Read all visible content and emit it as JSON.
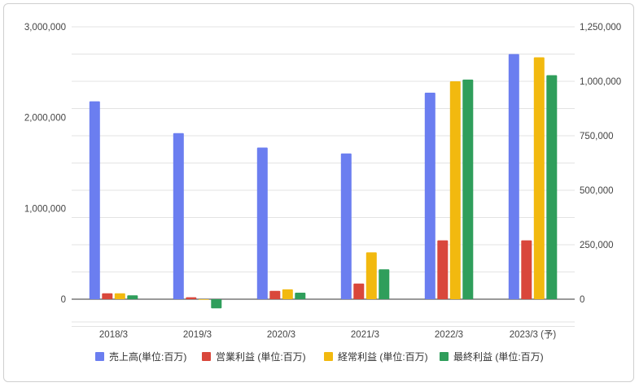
{
  "chart_data": {
    "type": "bar",
    "categories": [
      "2018/3",
      "2019/3",
      "2020/3",
      "2021/3",
      "2022/3",
      "2023/3 (予)"
    ],
    "series": [
      {
        "name": "売上高(単位:百万)",
        "axis": "left",
        "color": "#6b7ef0",
        "values": [
          2180000,
          1830000,
          1670000,
          1605000,
          2275000,
          2700000
        ]
      },
      {
        "name": "営業利益 (単位:百万)",
        "axis": "right",
        "color": "#d9473b",
        "values": [
          27000,
          9000,
          38000,
          72000,
          270000,
          270000
        ]
      },
      {
        "name": "経常利益 (単位:百万)",
        "axis": "right",
        "color": "#f2b90f",
        "values": [
          27000,
          -2000,
          45000,
          215000,
          1000000,
          1110000
        ]
      },
      {
        "name": "最終利益 (単位:百万)",
        "axis": "right",
        "color": "#2f9e5b",
        "values": [
          18000,
          -42000,
          30000,
          137000,
          1008000,
          1028000
        ]
      }
    ],
    "y_left": {
      "ticks": [
        0,
        1000000,
        2000000,
        3000000
      ],
      "tick_labels": [
        "0",
        "1,000,000",
        "2,000,000",
        "3,000,000"
      ],
      "range": [
        -250000,
        3000000
      ]
    },
    "y_right": {
      "ticks": [
        0,
        250000,
        500000,
        750000,
        1000000,
        1250000
      ],
      "tick_labels": [
        "0",
        "250,000",
        "500,000",
        "750,000",
        "1,000,000",
        "1,250,000"
      ],
      "range": [
        -104167,
        1250000
      ]
    },
    "grid": true,
    "legend_position": "bottom",
    "title": "",
    "xlabel": "",
    "ylabel": ""
  }
}
